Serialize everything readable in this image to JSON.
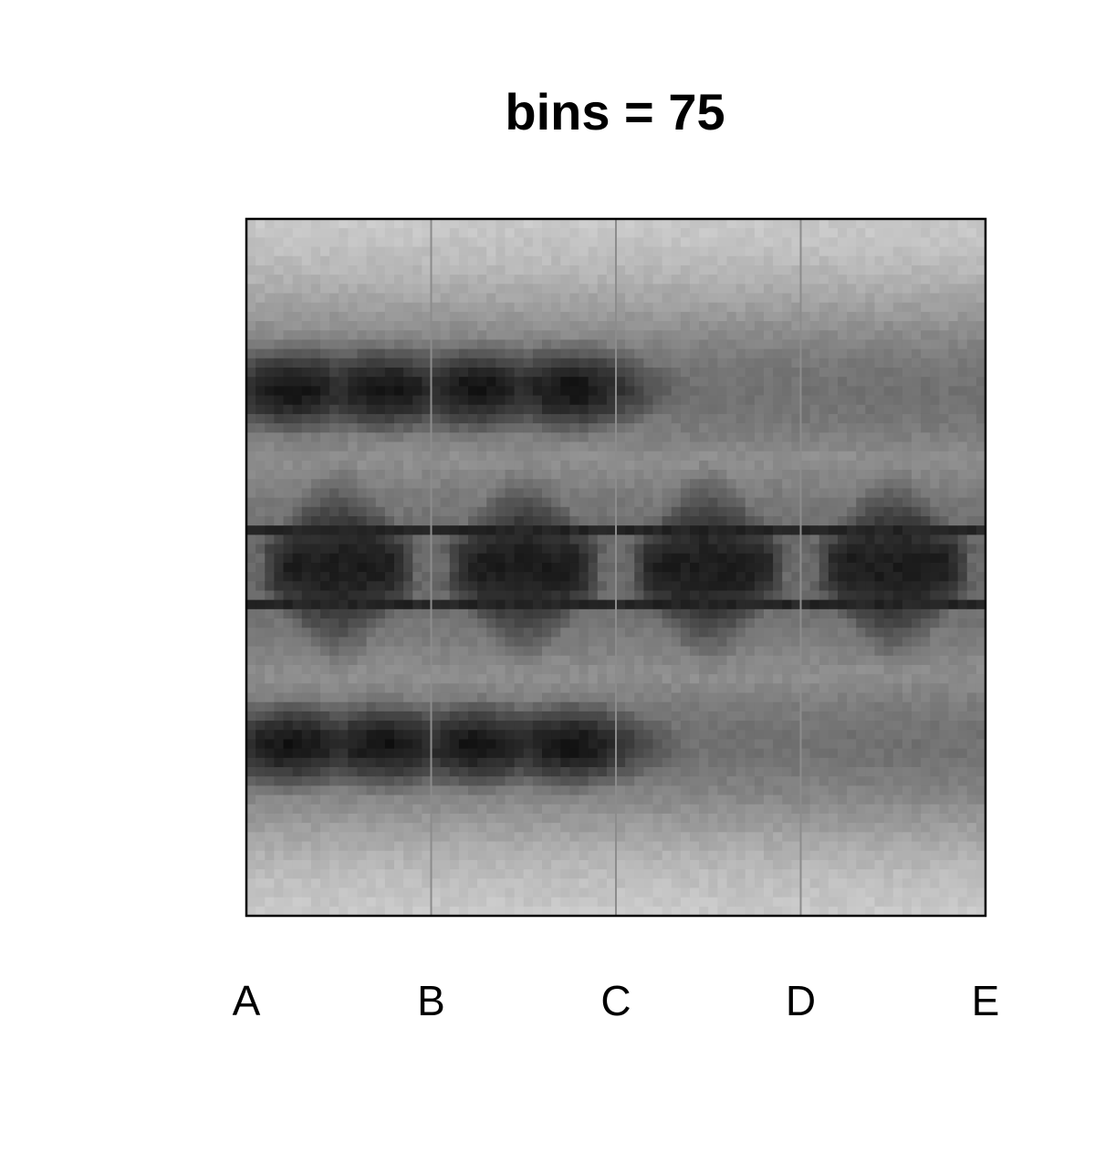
{
  "chart_data": {
    "type": "heatmap",
    "title": "bins = 75",
    "xlabel": "",
    "ylabel": "",
    "bins": 75,
    "x_tick_labels": [
      "A",
      "B",
      "C",
      "D",
      "E"
    ],
    "colormap": "grayscale",
    "grid": false,
    "legend": "none",
    "colors": {
      "frame": "#000000",
      "divider": "#8c8c8c",
      "background": "#ffffff"
    }
  }
}
